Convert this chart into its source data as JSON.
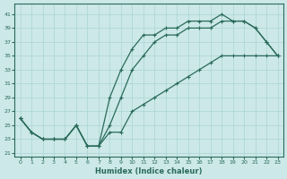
{
  "xlabel": "Humidex (Indice chaleur)",
  "bg_color": "#cce8e8",
  "line_color": "#2a6b5a",
  "grid_color": "#aad4d4",
  "x": [
    0,
    1,
    2,
    3,
    4,
    5,
    6,
    7,
    8,
    9,
    10,
    11,
    12,
    13,
    14,
    15,
    16,
    17,
    18,
    19,
    20,
    21,
    22,
    23
  ],
  "line1": [
    26,
    24,
    23,
    23,
    23,
    25,
    22,
    22,
    29,
    33,
    36,
    38,
    38,
    39,
    39,
    40,
    40,
    40,
    41,
    40,
    40,
    39,
    37,
    35
  ],
  "line2": [
    26,
    24,
    23,
    23,
    23,
    25,
    22,
    22,
    25,
    29,
    33,
    35,
    37,
    38,
    38,
    39,
    39,
    39,
    40,
    40,
    40,
    39,
    37,
    35
  ],
  "line3": [
    26,
    24,
    23,
    23,
    23,
    25,
    22,
    22,
    24,
    24,
    27,
    28,
    29,
    30,
    31,
    32,
    33,
    34,
    35,
    35,
    35,
    35,
    35,
    35
  ],
  "xlim": [
    -0.5,
    23.5
  ],
  "ylim": [
    20.5,
    42.5
  ],
  "xticks": [
    0,
    1,
    2,
    3,
    4,
    5,
    6,
    7,
    8,
    9,
    10,
    11,
    12,
    13,
    14,
    15,
    16,
    17,
    18,
    19,
    20,
    21,
    22,
    23
  ],
  "yticks": [
    21,
    23,
    25,
    27,
    29,
    31,
    33,
    35,
    37,
    39,
    41
  ]
}
